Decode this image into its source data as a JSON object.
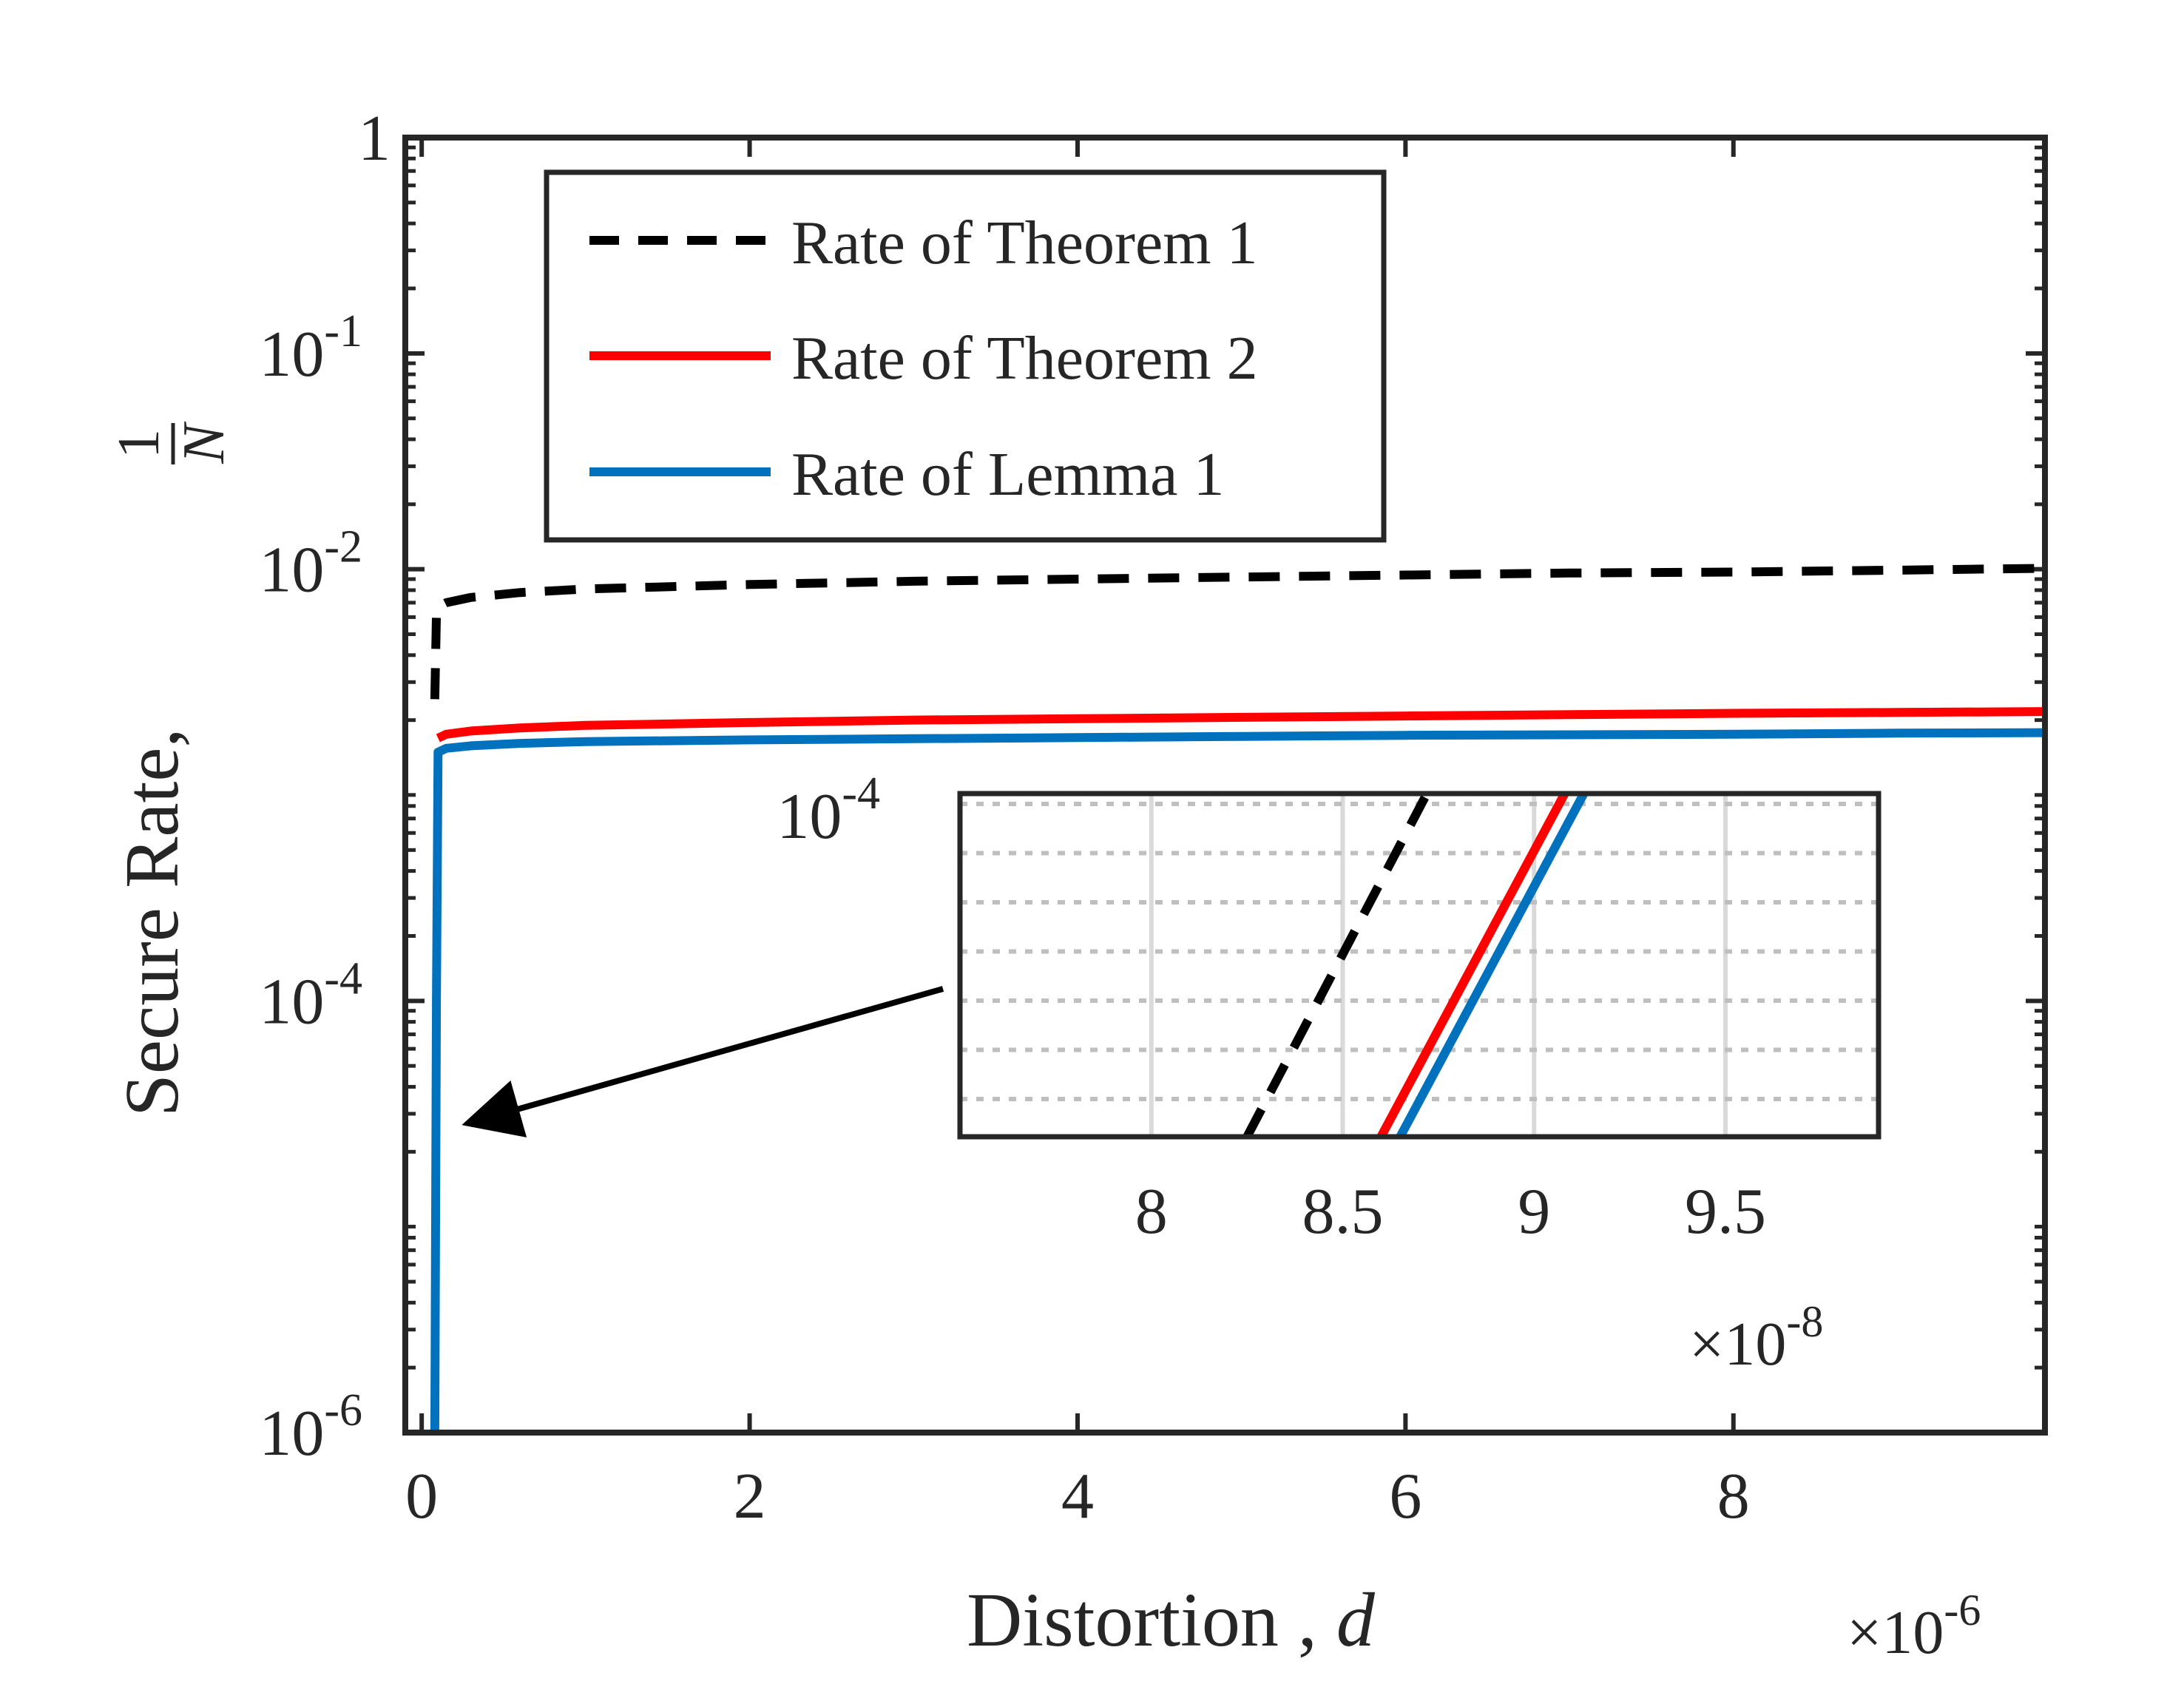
{
  "chart_data": [
    {
      "type": "line",
      "role": "main",
      "xlabel": "Distortion , d",
      "xlabel_main": "Distortion ,",
      "xlabel_var": "d",
      "ylabel": "Secure Rate, 1/N",
      "ylabel_main": "Secure Rate,",
      "ylabel_num": "1",
      "ylabel_den": "N",
      "x_multiplier_base": "×10",
      "x_multiplier_exp": "-6",
      "xlim": [
        -0.1,
        9.9
      ],
      "xticks": [
        0,
        2,
        4,
        6,
        8
      ],
      "xtick_labels": [
        "0",
        "2",
        "4",
        "6",
        "8"
      ],
      "yscale": "log",
      "ylim": [
        1e-06,
        1
      ],
      "yticks": [
        {
          "value": 1,
          "base": "1",
          "exp": ""
        },
        {
          "value": 0.1,
          "base": "10",
          "exp": "-1"
        },
        {
          "value": 0.01,
          "base": "10",
          "exp": "-2"
        },
        {
          "value": 0.0001,
          "base": "10",
          "exp": "-4"
        },
        {
          "value": 1e-06,
          "base": "10",
          "exp": "-6"
        }
      ],
      "series": [
        {
          "name": "Rate of Theorem 1",
          "color": "#000000",
          "style": "dashed",
          "x": [
            0.08,
            0.09,
            0.1,
            0.15,
            0.3,
            0.6,
            1,
            2,
            3,
            4,
            5,
            6,
            7,
            8,
            9,
            9.9
          ],
          "y": [
            0.0025,
            0.0062,
            0.0067,
            0.007,
            0.0074,
            0.0078,
            0.0081,
            0.0085,
            0.0088,
            0.009,
            0.0092,
            0.0094,
            0.0096,
            0.0097,
            0.0099,
            0.0101
          ]
        },
        {
          "name": "Rate of Theorem 2",
          "color": "#ff0000",
          "style": "solid",
          "x": [
            0.1,
            0.15,
            0.3,
            0.6,
            1,
            2,
            3,
            4,
            5,
            6,
            7,
            8,
            9,
            9.9
          ],
          "y": [
            0.00165,
            0.00172,
            0.00178,
            0.00184,
            0.00189,
            0.00195,
            0.002,
            0.00203,
            0.00206,
            0.00209,
            0.00212,
            0.00215,
            0.00217,
            0.00219
          ]
        },
        {
          "name": "Rate of Lemma 1",
          "color": "#0072bd",
          "style": "solid",
          "x": [
            0.08,
            0.09,
            0.1,
            0.15,
            0.3,
            0.6,
            1,
            2,
            3,
            4,
            5,
            6,
            7,
            8,
            9,
            9.9
          ],
          "y": [
            1e-06,
            0.0001,
            0.00142,
            0.00148,
            0.00152,
            0.00156,
            0.00159,
            0.00162,
            0.00164,
            0.00166,
            0.00168,
            0.0017,
            0.00171,
            0.00172,
            0.00174,
            0.00175
          ]
        }
      ],
      "legend": {
        "placement": "top-left",
        "entries": [
          "Rate of Theorem 1",
          "Rate of Theorem 2",
          "Rate of Lemma 1"
        ]
      },
      "annotations": [
        {
          "type": "arrow",
          "from": "inset",
          "to": "Lemma 1 vertical rise near d = 0.1 (y ≈ 3e-5)"
        }
      ]
    },
    {
      "type": "line",
      "role": "inset",
      "title": "",
      "x_multiplier_base": "×10",
      "x_multiplier_exp": "-8",
      "xlim": [
        7.5,
        9.9
      ],
      "xticks": [
        8,
        8.5,
        9,
        9.5
      ],
      "xtick_labels": [
        "8",
        "8.5",
        "9",
        "9.5"
      ],
      "ylabel_tick": {
        "base": "10",
        "exp": "-4"
      },
      "grid": true,
      "series": [
        {
          "name": "Rate of Theorem 1",
          "color": "#000000",
          "style": "dashed",
          "x": [
            8.25,
            8.72
          ],
          "y": [
            0,
            1
          ]
        },
        {
          "name": "Rate of Theorem 2",
          "color": "#ff0000",
          "style": "solid",
          "x": [
            8.6,
            9.08
          ],
          "y": [
            0,
            1
          ]
        },
        {
          "name": "Rate of Lemma 1",
          "color": "#0072bd",
          "style": "solid",
          "x": [
            8.65,
            9.13
          ],
          "y": [
            0,
            1
          ]
        }
      ]
    }
  ]
}
